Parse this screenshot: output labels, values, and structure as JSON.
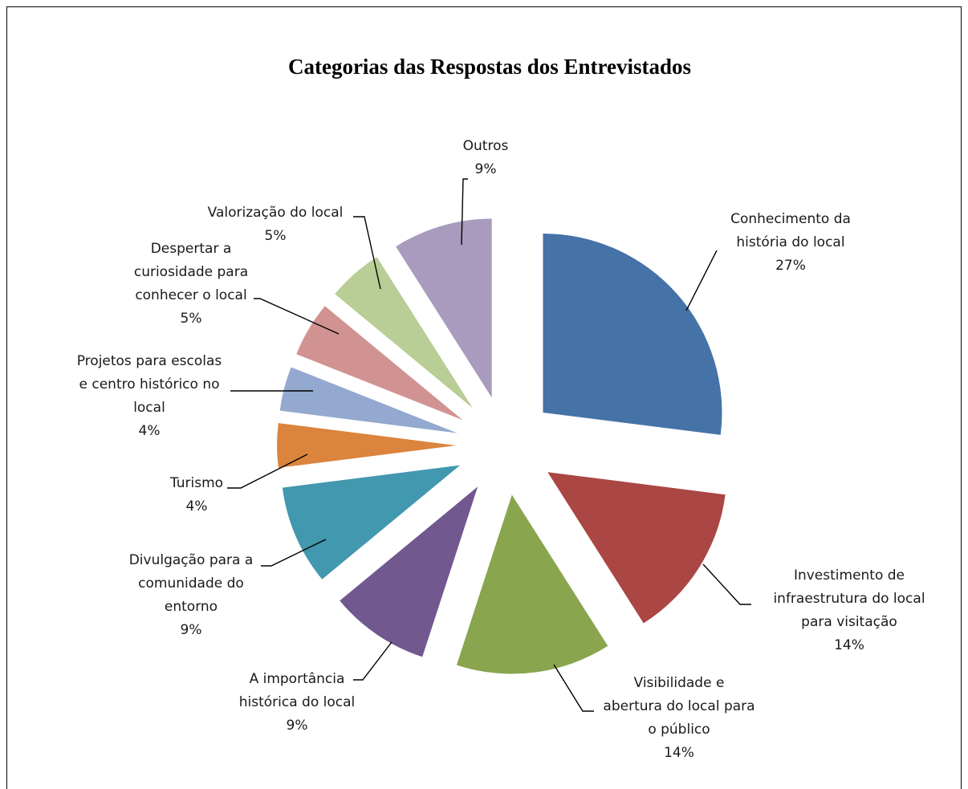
{
  "chart_data": {
    "type": "pie",
    "title": "Categorias das Respostas dos Entrevistados",
    "slices": [
      {
        "label": [
          "Conhecimento da",
          "história do local"
        ],
        "percent_label": "27%",
        "value": 27,
        "color": "#4572A7"
      },
      {
        "label": [
          "Investimento de",
          "infraestrutura do local",
          "para visitação"
        ],
        "percent_label": "14%",
        "value": 14,
        "color": "#AA4643"
      },
      {
        "label": [
          "Visibilidade e",
          "abertura do local para",
          "o público"
        ],
        "percent_label": "14%",
        "value": 14,
        "color": "#89A54E"
      },
      {
        "label": [
          "A importância",
          "histórica do local"
        ],
        "percent_label": "9%",
        "value": 9,
        "color": "#71588F"
      },
      {
        "label": [
          "Divulgação para a",
          "comunidade do",
          "entorno"
        ],
        "percent_label": "9%",
        "value": 9,
        "color": "#4198AF"
      },
      {
        "label": [
          "Turismo"
        ],
        "percent_label": "4%",
        "value": 4,
        "color": "#DB843D"
      },
      {
        "label": [
          "Projetos para escolas",
          "e centro histórico no",
          "local"
        ],
        "percent_label": "4%",
        "value": 4,
        "color": "#93A9CF"
      },
      {
        "label": [
          "Despertar a",
          "curiosidade para",
          "conhecer o local"
        ],
        "percent_label": "5%",
        "value": 5,
        "color": "#D19392"
      },
      {
        "label": [
          "Valorização do local"
        ],
        "percent_label": "5%",
        "value": 5,
        "color": "#B9CD96"
      },
      {
        "label": [
          "Outros"
        ],
        "percent_label": "9%",
        "value": 9,
        "color": "#A99BBD"
      }
    ]
  }
}
